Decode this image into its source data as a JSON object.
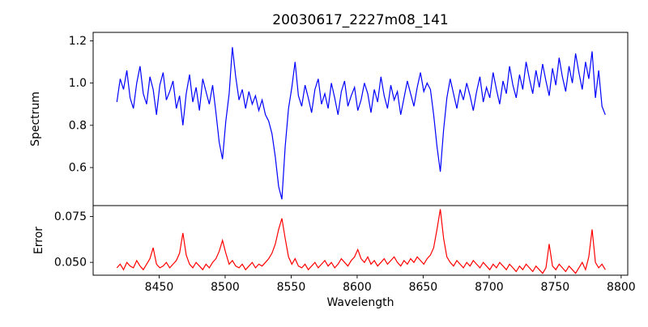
{
  "figure": {
    "background": "#ffffff",
    "axes_color": "#000000"
  },
  "chart_data": [
    {
      "type": "line",
      "title": "20030617_2227m08_141",
      "ylabel": "Spectrum",
      "color": "#0000ff",
      "grid": false,
      "legend": "none",
      "xlim": [
        8400,
        8805
      ],
      "ylim": [
        0.42,
        1.24
      ],
      "yticks": [
        0.6,
        0.8,
        1.0,
        1.2
      ],
      "ytick_labels": [
        "0.6",
        "0.8",
        "1.0",
        "1.2"
      ],
      "x_start": 8418,
      "x_step": 2.5,
      "values": [
        0.91,
        1.02,
        0.97,
        1.06,
        0.93,
        0.88,
        1.0,
        1.08,
        0.95,
        0.9,
        1.03,
        0.97,
        0.85,
        0.99,
        1.05,
        0.92,
        0.96,
        1.01,
        0.88,
        0.94,
        0.8,
        0.95,
        1.04,
        0.91,
        0.98,
        0.87,
        1.02,
        0.96,
        0.9,
        0.99,
        0.86,
        0.72,
        0.64,
        0.82,
        0.95,
        1.17,
        1.03,
        0.92,
        0.97,
        0.88,
        0.96,
        0.9,
        0.94,
        0.87,
        0.92,
        0.85,
        0.82,
        0.76,
        0.65,
        0.51,
        0.45,
        0.7,
        0.88,
        0.98,
        1.1,
        0.94,
        0.89,
        0.99,
        0.93,
        0.86,
        0.97,
        1.02,
        0.9,
        0.95,
        0.88,
        1.0,
        0.93,
        0.85,
        0.96,
        1.01,
        0.89,
        0.94,
        0.98,
        0.87,
        0.92,
        1.0,
        0.95,
        0.86,
        0.97,
        0.91,
        1.03,
        0.94,
        0.88,
        0.99,
        0.92,
        0.96,
        0.85,
        0.93,
        1.01,
        0.95,
        0.89,
        0.98,
        1.05,
        0.96,
        1.0,
        0.97,
        0.85,
        0.7,
        0.58,
        0.78,
        0.93,
        1.02,
        0.95,
        0.88,
        0.97,
        0.92,
        1.0,
        0.94,
        0.87,
        0.96,
        1.03,
        0.91,
        0.98,
        0.93,
        1.05,
        0.97,
        0.9,
        1.01,
        0.95,
        1.08,
        0.99,
        0.93,
        1.04,
        0.97,
        1.1,
        1.02,
        0.95,
        1.06,
        0.98,
        1.09,
        1.01,
        0.94,
        1.07,
        0.99,
        1.12,
        1.03,
        0.96,
        1.08,
        1.0,
        1.14,
        1.05,
        0.97,
        1.1,
        1.02,
        1.15,
        0.93,
        1.06,
        0.89,
        0.85
      ],
      "annotations": {
        "absorption_lines_x": [
          8498,
          8542,
          8662
        ],
        "absorption_depths": [
          0.64,
          0.45,
          0.58
        ]
      }
    },
    {
      "type": "line",
      "ylabel": "Error",
      "xlabel": "Wavelength",
      "color": "#ff0000",
      "grid": false,
      "legend": "none",
      "xlim": [
        8400,
        8805
      ],
      "ylim": [
        0.043,
        0.081
      ],
      "yticks": [
        0.05,
        0.075
      ],
      "ytick_labels": [
        "0.050",
        "0.075"
      ],
      "xticks": [
        8450,
        8500,
        8550,
        8600,
        8650,
        8700,
        8750,
        8800
      ],
      "xtick_labels": [
        "8450",
        "8500",
        "8550",
        "8600",
        "8650",
        "8700",
        "8750",
        "8800"
      ],
      "x_start": 8418,
      "x_step": 2.5,
      "values": [
        0.047,
        0.049,
        0.046,
        0.05,
        0.048,
        0.047,
        0.051,
        0.048,
        0.046,
        0.049,
        0.052,
        0.058,
        0.049,
        0.047,
        0.048,
        0.05,
        0.047,
        0.049,
        0.051,
        0.055,
        0.066,
        0.054,
        0.049,
        0.047,
        0.05,
        0.048,
        0.046,
        0.049,
        0.047,
        0.05,
        0.052,
        0.056,
        0.062,
        0.055,
        0.049,
        0.051,
        0.048,
        0.047,
        0.049,
        0.046,
        0.048,
        0.05,
        0.047,
        0.049,
        0.048,
        0.05,
        0.052,
        0.055,
        0.06,
        0.068,
        0.074,
        0.063,
        0.053,
        0.049,
        0.052,
        0.048,
        0.047,
        0.049,
        0.046,
        0.048,
        0.05,
        0.047,
        0.049,
        0.051,
        0.048,
        0.05,
        0.047,
        0.049,
        0.052,
        0.05,
        0.048,
        0.051,
        0.053,
        0.057,
        0.052,
        0.05,
        0.053,
        0.049,
        0.051,
        0.048,
        0.05,
        0.052,
        0.049,
        0.051,
        0.053,
        0.05,
        0.048,
        0.051,
        0.049,
        0.052,
        0.05,
        0.053,
        0.051,
        0.049,
        0.052,
        0.054,
        0.058,
        0.068,
        0.079,
        0.063,
        0.053,
        0.05,
        0.048,
        0.051,
        0.049,
        0.047,
        0.05,
        0.048,
        0.051,
        0.049,
        0.047,
        0.05,
        0.048,
        0.046,
        0.049,
        0.047,
        0.05,
        0.048,
        0.046,
        0.049,
        0.047,
        0.045,
        0.048,
        0.046,
        0.049,
        0.047,
        0.045,
        0.048,
        0.046,
        0.044,
        0.047,
        0.06,
        0.048,
        0.046,
        0.049,
        0.047,
        0.045,
        0.048,
        0.046,
        0.044,
        0.047,
        0.05,
        0.046,
        0.053,
        0.068,
        0.05,
        0.047,
        0.049,
        0.046
      ]
    }
  ]
}
